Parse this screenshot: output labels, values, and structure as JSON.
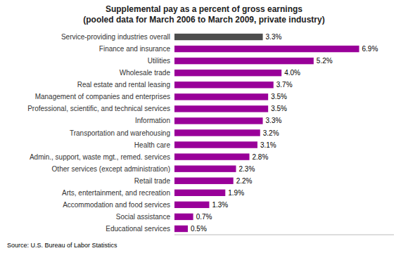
{
  "chart_data": {
    "type": "bar",
    "orientation": "horizontal",
    "title": "Supplemental pay as a percent of gross earnings\n(pooled data for March 2006 to March 2009, private industry)",
    "categories": [
      "Educational services",
      "Social assistance",
      "Accommodation and food services",
      "Arts, entertainment, and recreation",
      "Retail trade",
      "Other services (except administration)",
      "Admin., support, waste mgt., remed. services",
      "Health care",
      "Transportation and warehousing",
      "Information",
      "Professional, scientific, and technical services",
      "Management of companies and enterprises",
      "Real estate and rental leasing",
      "Wholesale trade",
      "Utilities",
      "Finance and insurance",
      "Service-providing industries overall"
    ],
    "values": [
      0.5,
      0.7,
      1.3,
      1.9,
      2.2,
      2.3,
      2.8,
      3.1,
      3.2,
      3.3,
      3.5,
      3.5,
      3.7,
      4.0,
      5.2,
      6.9,
      3.3
    ],
    "value_labels": [
      "0.5%",
      "0.7%",
      "1.3%",
      "1.9%",
      "2.2%",
      "2.3%",
      "2.8%",
      "3.1%",
      "3.2%",
      "3.3%",
      "3.5%",
      "3.5%",
      "3.7%",
      "4.0%",
      "5.2%",
      "6.9%",
      "3.3%"
    ],
    "colors": [
      "#990099",
      "#990099",
      "#990099",
      "#990099",
      "#990099",
      "#990099",
      "#990099",
      "#990099",
      "#990099",
      "#990099",
      "#990099",
      "#990099",
      "#990099",
      "#990099",
      "#990099",
      "#990099",
      "#4d4d4d"
    ],
    "data_labels": true,
    "xlim": [
      0,
      8.2
    ],
    "grid": false,
    "tick_labels": "y",
    "annotations": [
      "Source: U.S. Bureau of Labor Statistics"
    ]
  }
}
